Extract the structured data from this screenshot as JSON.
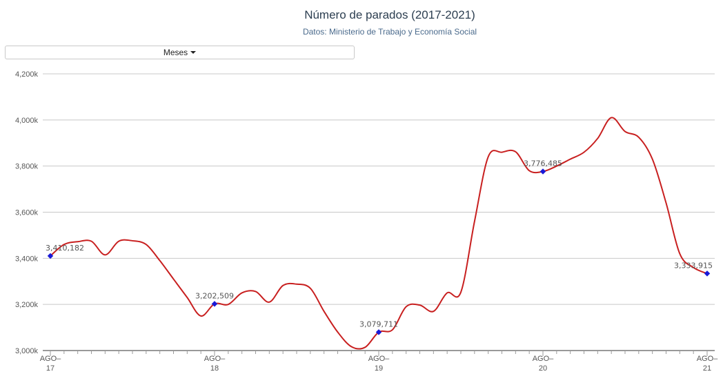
{
  "title": "Número de parados (2017-2021)",
  "subtitle": "Datos: Ministerio de Trabajo y Economía Social",
  "dropdown": {
    "label": "Meses"
  },
  "chart_data": {
    "type": "line",
    "title": "Número de parados (2017-2021)",
    "subtitle": "Datos: Ministerio de Trabajo y Economía Social",
    "ylim": [
      3000000,
      4200000
    ],
    "yticks": [
      {
        "value": 3000000,
        "label": "3,000k"
      },
      {
        "value": 3200000,
        "label": "3,200k"
      },
      {
        "value": 3400000,
        "label": "3,400k"
      },
      {
        "value": 3600000,
        "label": "3,600k"
      },
      {
        "value": 3800000,
        "label": "3,800k"
      },
      {
        "value": 4000000,
        "label": "4,000k"
      },
      {
        "value": 4200000,
        "label": "4,200k"
      }
    ],
    "xticks": [
      {
        "index": 0,
        "line1": "AGO–",
        "line2": "17"
      },
      {
        "index": 12,
        "line1": "AGO–",
        "line2": "18"
      },
      {
        "index": 24,
        "line1": "AGO–",
        "line2": "19"
      },
      {
        "index": 36,
        "line1": "AGO–",
        "line2": "20"
      },
      {
        "index": 48,
        "line1": "AGO–",
        "line2": "21"
      }
    ],
    "grid": true,
    "color": "#c81f1f",
    "marker_color": "#1a1ad8",
    "series": [
      {
        "values": [
          3410182,
          3460000,
          3472000,
          3474000,
          3415000,
          3474000,
          3476000,
          3460000,
          3390000,
          3310000,
          3230000,
          3150000,
          3202509,
          3200000,
          3250000,
          3256000,
          3210000,
          3282000,
          3288000,
          3270000,
          3170000,
          3080000,
          3017000,
          3014000,
          3079711,
          3090000,
          3190000,
          3197000,
          3170000,
          3250000,
          3253000,
          3560000,
          3840000,
          3860000,
          3862000,
          3780000,
          3776485,
          3800000,
          3830000,
          3860000,
          3920000,
          4010000,
          3950000,
          3925000,
          3830000,
          3640000,
          3420000,
          3360000,
          3333915
        ]
      }
    ],
    "labeled_points": [
      {
        "index": 0,
        "text": "3,410,182"
      },
      {
        "index": 12,
        "text": "3,202,509"
      },
      {
        "index": 24,
        "text": "3,079,711"
      },
      {
        "index": 36,
        "text": "3,776,485"
      },
      {
        "index": 48,
        "text": "3,333,915"
      }
    ]
  }
}
